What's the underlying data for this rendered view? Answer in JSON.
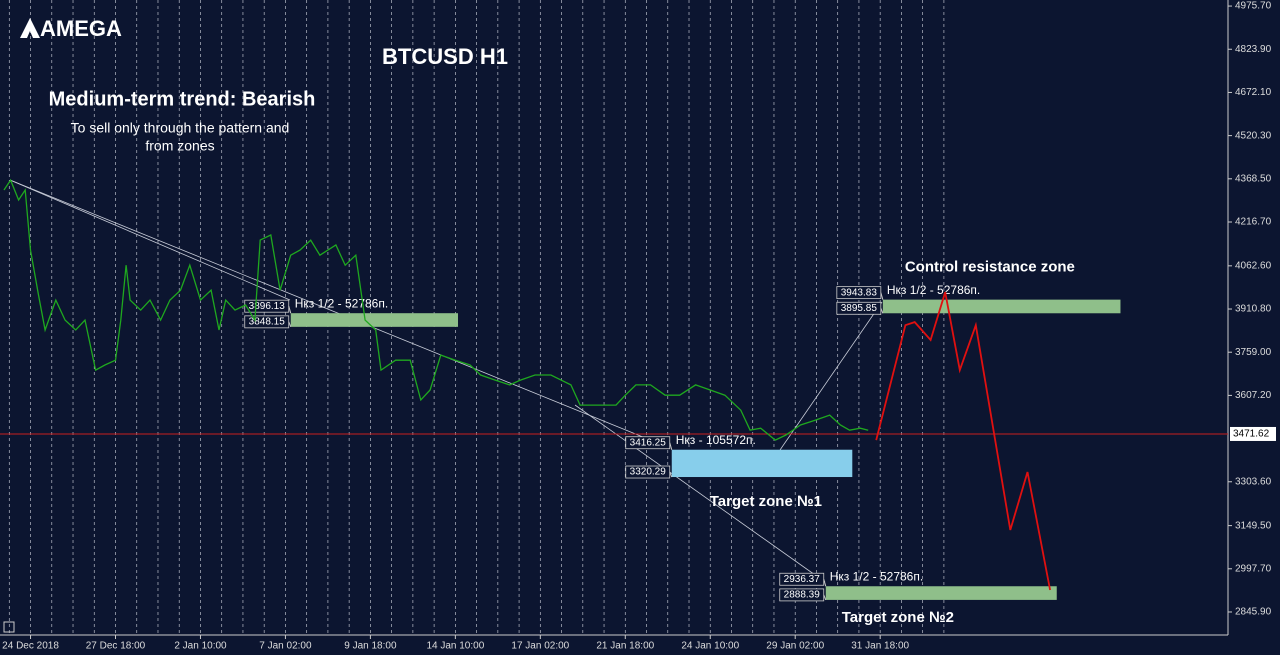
{
  "logo": "AMEGA",
  "chart_data": {
    "type": "line",
    "title": "BTCUSD H1",
    "subtitle": "Medium-term trend: Bearish",
    "annotation": [
      "To sell only through the pattern and",
      "from zones"
    ],
    "xlim": [
      -23,
      902
    ],
    "xticks": [
      {
        "value": 0,
        "label": "24 Dec 2018"
      },
      {
        "value": 64,
        "label": "27 Dec 18:00"
      },
      {
        "value": 128,
        "label": "2 Jan 10:00"
      },
      {
        "value": 192,
        "label": "7 Jan 02:00"
      },
      {
        "value": 256,
        "label": "9 Jan 18:00"
      },
      {
        "value": 320,
        "label": "14 Jan 10:00"
      },
      {
        "value": 384,
        "label": "17 Jan 02:00"
      },
      {
        "value": 448,
        "label": "21 Jan 18:00"
      },
      {
        "value": 512,
        "label": "24 Jan 10:00"
      },
      {
        "value": 576,
        "label": "29 Jan 02:00"
      },
      {
        "value": 640,
        "label": "31 Jan 18:00"
      }
    ],
    "ylim": [
      2765,
      4997
    ],
    "yticks": [
      {
        "value": 4975.7,
        "label": "4975.70"
      },
      {
        "value": 4823.9,
        "label": "4823.90"
      },
      {
        "value": 4672.1,
        "label": "4672.10"
      },
      {
        "value": 4520.3,
        "label": "4520.30"
      },
      {
        "value": 4368.5,
        "label": "4368.50"
      },
      {
        "value": 4216.7,
        "label": "4216.70"
      },
      {
        "value": 4062.6,
        "label": "4062.60"
      },
      {
        "value": 3910.8,
        "label": "3910.80"
      },
      {
        "value": 3759,
        "label": "3759.00"
      },
      {
        "value": 3607.2,
        "label": "3607.20"
      },
      {
        "value": 3303.6,
        "label": "3303.60"
      },
      {
        "value": 3149.5,
        "label": "3149.50"
      },
      {
        "value": 2997.7,
        "label": "2997.70"
      },
      {
        "value": 2845.9,
        "label": "2845.90"
      }
    ],
    "grid": true,
    "price": {
      "color": "#1fa81f",
      "x": [
        -20,
        -15,
        -9,
        -4,
        0,
        6,
        11,
        19,
        26,
        34,
        41,
        49,
        56,
        64,
        68,
        72,
        75,
        83,
        90,
        98,
        105,
        113,
        120,
        128,
        136,
        142,
        147,
        154,
        162,
        169,
        173,
        181,
        188,
        196,
        203,
        211,
        218,
        230,
        237,
        245,
        252,
        260,
        264,
        275,
        286,
        294,
        301,
        309,
        320,
        331,
        339,
        350,
        361,
        369,
        380,
        392,
        407,
        414,
        429,
        441,
        448,
        456,
        467,
        478,
        489,
        501,
        512,
        523,
        535,
        542,
        550,
        561,
        569,
        580,
        591,
        602,
        610,
        617,
        625,
        631
      ],
      "values": [
        4329,
        4364,
        4294,
        4329,
        4118,
        3960,
        3837,
        3942,
        3872,
        3837,
        3872,
        3696,
        3714,
        3731,
        3872,
        4065,
        3942,
        3907,
        3942,
        3872,
        3942,
        3977,
        4065,
        3942,
        3977,
        3837,
        3942,
        3907,
        3925,
        3872,
        4153,
        4171,
        3977,
        4100,
        4118,
        4153,
        4100,
        4136,
        4065,
        4100,
        3872,
        3837,
        3696,
        3731,
        3731,
        3591,
        3626,
        3749,
        3731,
        3714,
        3679,
        3661,
        3644,
        3661,
        3679,
        3679,
        3644,
        3573,
        3573,
        3573,
        3608,
        3644,
        3644,
        3608,
        3608,
        3644,
        3626,
        3608,
        3555,
        3485,
        3492,
        3450,
        3468,
        3503,
        3520,
        3538,
        3503,
        3485,
        3492,
        3485
      ]
    },
    "forecast": {
      "color": "#e01010",
      "x": [
        637,
        659,
        666,
        678,
        689,
        700,
        712,
        738,
        751,
        768
      ],
      "values": [
        3450,
        3854,
        3865,
        3802,
        3970,
        3696,
        3854,
        3134,
        3338,
        2923
      ]
    },
    "last_price": 3471.62,
    "last_price_color": "#c81e1e",
    "zones": [
      {
        "caption": "Нкз 1/2 - 52786п.",
        "top": 3896.13,
        "bottom": 3848.15,
        "xrange": [
          196,
          322
        ],
        "color": "#8fbf8a"
      },
      {
        "caption": "Нкз - 105572п.",
        "top": 3416.25,
        "bottom": 3320.29,
        "xrange": [
          483,
          619
        ],
        "color": "#87ceeb",
        "title": "Target zone №1"
      },
      {
        "caption": "Нкз 1/2 - 52786п.",
        "top": 3943.83,
        "bottom": 3895.85,
        "xrange": [
          642,
          821
        ],
        "color": "#8fbf8a",
        "title": "Control resistance zone"
      },
      {
        "caption": "Нкз 1/2 - 52786п.",
        "top": 2936.37,
        "bottom": 2888.39,
        "xrange": [
          599,
          773
        ],
        "color": "#8fbf8a",
        "title": "Target zone №2"
      }
    ]
  }
}
